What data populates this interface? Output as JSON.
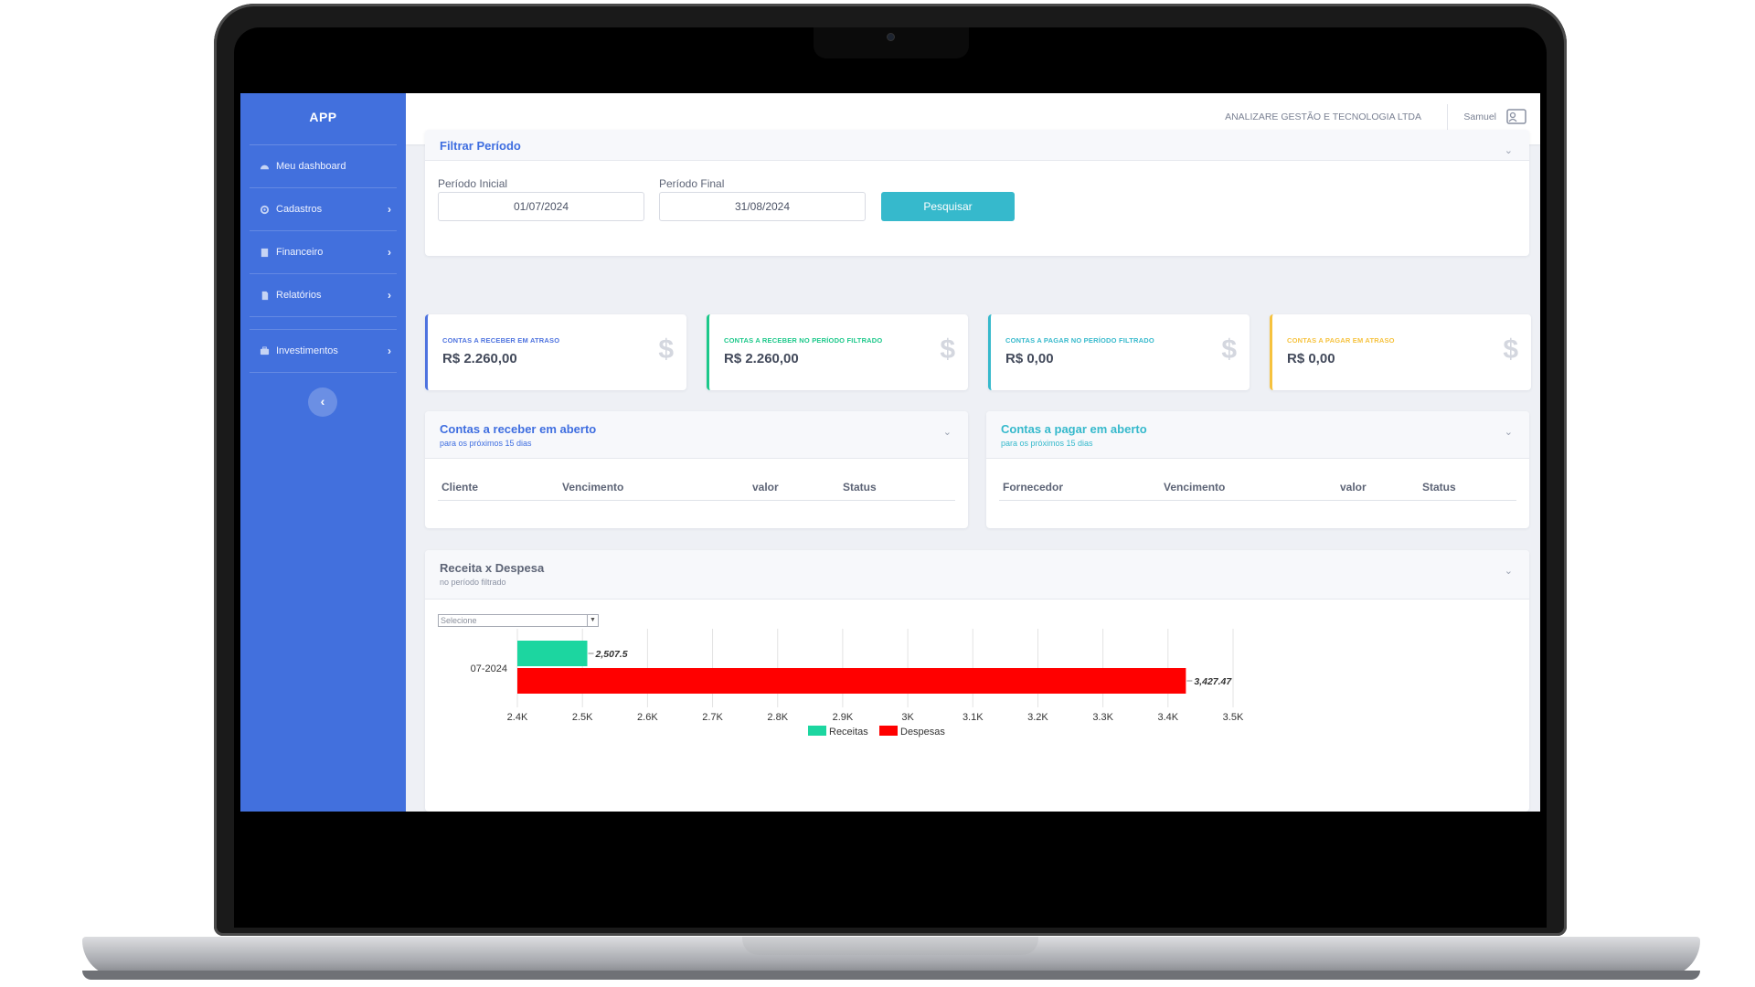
{
  "sidebar": {
    "brand": "APP",
    "items": [
      {
        "label": "Meu dashboard",
        "icon": "dashboard-icon",
        "chevron": false
      },
      {
        "label": "Cadastros",
        "icon": "gear-icon",
        "chevron": true
      },
      {
        "label": "Financeiro",
        "icon": "building-icon",
        "chevron": true
      },
      {
        "label": "Relatórios",
        "icon": "document-icon",
        "chevron": true
      },
      {
        "label": "Investimentos",
        "icon": "briefcase-icon",
        "chevron": true
      }
    ],
    "chevron_glyph": "›",
    "collapse_glyph": "‹"
  },
  "topbar": {
    "company": "ANALIZARE GESTÃO E TECNOLOGIA LTDA",
    "user": "Samuel"
  },
  "filter": {
    "title": "Filtrar Período",
    "start_label": "Período Inicial",
    "start_value": "01/07/2024",
    "end_label": "Período Final",
    "end_value": "31/08/2024",
    "button": "Pesquisar"
  },
  "kpis": [
    {
      "label": "CONTAS A RECEBER EM ATRASO",
      "value": "R$ 2.260,00",
      "color": "#4e73df"
    },
    {
      "label": "CONTAS A RECEBER NO PERÍODO FILTRADO",
      "value": "R$ 2.260,00",
      "color": "#1cc88a"
    },
    {
      "label": "CONTAS A PAGAR NO PERÍODO FILTRADO",
      "value": "R$ 0,00",
      "color": "#36b9cc"
    },
    {
      "label": "CONTAS A PAGAR EM ATRASO",
      "value": "R$ 0,00",
      "color": "#f6c23e"
    }
  ],
  "receivables": {
    "title": "Contas a receber em aberto",
    "subtitle": "para os próximos 15 dias",
    "columns": [
      "Cliente",
      "Vencimento",
      "valor",
      "Status"
    ]
  },
  "payables": {
    "title": "Contas a pagar em aberto",
    "subtitle": "para os próximos 15 dias",
    "columns": [
      "Fornecedor",
      "Vencimento",
      "valor",
      "Status"
    ]
  },
  "chart_card": {
    "title": "Receita x Despesa",
    "subtitle": "no período filtrado",
    "select_placeholder": "Selecione"
  },
  "chart_data": {
    "type": "bar",
    "orientation": "horizontal",
    "categories": [
      "07-2024"
    ],
    "series": [
      {
        "name": "Receitas",
        "values": [
          2507.5
        ],
        "labels": [
          "2,507.5"
        ],
        "color": "#1cd6a0"
      },
      {
        "name": "Despesas",
        "values": [
          3427.47
        ],
        "labels": [
          "3,427.47"
        ],
        "color": "#ff0000"
      }
    ],
    "xlim": [
      2400,
      3500
    ],
    "xticks": [
      2400,
      2500,
      2600,
      2700,
      2800,
      2900,
      3000,
      3100,
      3200,
      3300,
      3400,
      3500
    ],
    "xtick_labels": [
      "2.4K",
      "2.5K",
      "2.6K",
      "2.7K",
      "2.8K",
      "2.9K",
      "3K",
      "3.1K",
      "3.2K",
      "3.3K",
      "3.4K",
      "3.5K"
    ],
    "grid": true,
    "legend": "bottom"
  }
}
